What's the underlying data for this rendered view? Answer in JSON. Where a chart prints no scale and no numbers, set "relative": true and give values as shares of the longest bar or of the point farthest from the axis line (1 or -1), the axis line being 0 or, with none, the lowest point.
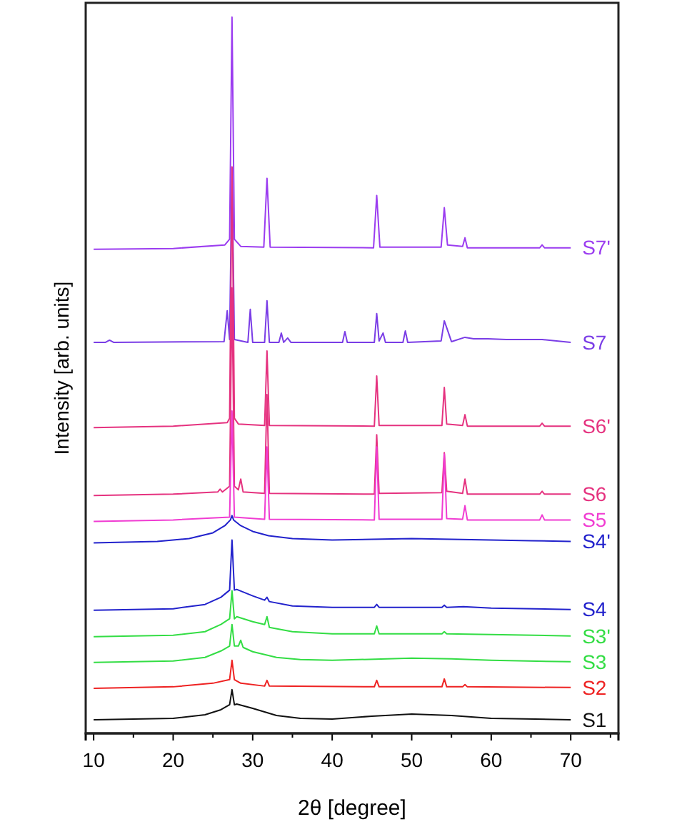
{
  "chart_data": {
    "type": "line",
    "relative": true,
    "xlabel": "2θ [degree]",
    "ylabel": "Intensity [arb. units]",
    "xlim": [
      9,
      76
    ],
    "xticks": [
      10,
      {
        "value": 15,
        "label": null
      },
      20,
      {
        "value": 25,
        "label": null
      },
      30,
      {
        "value": 35,
        "label": null
      },
      40,
      {
        "value": 45,
        "label": null
      },
      50,
      {
        "value": 55,
        "label": null
      },
      60,
      {
        "value": 65,
        "label": null
      },
      70,
      {
        "value": 75,
        "label": null
      }
    ],
    "series": [
      {
        "name": "S7'",
        "color": "#9b3cf0",
        "x": [
          10,
          20,
          26.5,
          27.1,
          27.4,
          27.7,
          28.5,
          31.4,
          31.8,
          32.2,
          45.2,
          45.6,
          46.0,
          53.7,
          54.1,
          54.5,
          56.4,
          56.7,
          57.0,
          66.1,
          66.4,
          66.7,
          70
        ],
        "values": [
          0.676,
          0.677,
          0.682,
          0.69,
          1.0,
          0.69,
          0.68,
          0.679,
          0.775,
          0.679,
          0.678,
          0.751,
          0.679,
          0.679,
          0.734,
          0.682,
          0.68,
          0.692,
          0.678,
          0.678,
          0.682,
          0.678,
          0.678
        ]
      },
      {
        "name": "S7",
        "color": "#7a3de6",
        "x": [
          10,
          11.5,
          12,
          12.5,
          26.4,
          26.8,
          27.1,
          27.4,
          27.7,
          29.4,
          29.7,
          30.0,
          31.5,
          31.8,
          32.1,
          33.3,
          33.6,
          33.9,
          34.4,
          34.8,
          41.3,
          41.6,
          41.9,
          45.3,
          45.6,
          45.9,
          46.4,
          46.7,
          48.9,
          49.2,
          49.5,
          53.7,
          54.1,
          54.6,
          55.0,
          56.7,
          57.8,
          59.6,
          61.9,
          66.4,
          70
        ],
        "values": [
          0.546,
          0.546,
          0.549,
          0.546,
          0.547,
          0.59,
          0.55,
          0.79,
          0.55,
          0.546,
          0.592,
          0.546,
          0.546,
          0.604,
          0.546,
          0.546,
          0.559,
          0.546,
          0.552,
          0.546,
          0.546,
          0.561,
          0.546,
          0.546,
          0.586,
          0.548,
          0.559,
          0.546,
          0.546,
          0.562,
          0.546,
          0.548,
          0.576,
          0.56,
          0.547,
          0.553,
          0.551,
          0.551,
          0.55,
          0.55,
          0.546
        ]
      },
      {
        "name": "S6'",
        "color": "#e5327f",
        "x": [
          10,
          20,
          26.8,
          27.1,
          27.4,
          27.7,
          28.2,
          31.5,
          31.8,
          32.1,
          45.3,
          45.6,
          45.9,
          53.8,
          54.1,
          54.4,
          56.4,
          56.7,
          57.0,
          66.1,
          66.4,
          66.7,
          70
        ],
        "values": [
          0.427,
          0.429,
          0.434,
          0.44,
          0.791,
          0.44,
          0.432,
          0.43,
          0.534,
          0.43,
          0.429,
          0.499,
          0.43,
          0.43,
          0.483,
          0.432,
          0.43,
          0.445,
          0.429,
          0.429,
          0.433,
          0.429,
          0.429
        ]
      },
      {
        "name": "S6",
        "color": "#e5327f",
        "x": [
          10,
          20,
          25.6,
          25.9,
          26.2,
          27.1,
          27.4,
          27.7,
          28.2,
          28.5,
          28.8,
          31.5,
          31.8,
          32.1,
          45.3,
          45.6,
          45.9,
          53.8,
          54.1,
          54.4,
          56.4,
          56.7,
          57.0,
          66.1,
          66.4,
          66.7,
          70
        ],
        "values": [
          0.332,
          0.334,
          0.337,
          0.341,
          0.337,
          0.345,
          0.622,
          0.345,
          0.34,
          0.355,
          0.337,
          0.335,
          0.473,
          0.335,
          0.334,
          0.417,
          0.335,
          0.336,
          0.392,
          0.338,
          0.335,
          0.355,
          0.334,
          0.334,
          0.338,
          0.334,
          0.334
        ]
      },
      {
        "name": "S5",
        "color": "#f03cd2",
        "x": [
          10,
          20,
          27.1,
          27.4,
          27.7,
          31.5,
          31.8,
          32.1,
          45.3,
          45.6,
          45.9,
          53.8,
          54.1,
          54.4,
          56.4,
          56.7,
          57.0,
          66.1,
          66.4,
          66.7,
          70
        ],
        "values": [
          0.296,
          0.298,
          0.302,
          0.45,
          0.302,
          0.299,
          0.4,
          0.299,
          0.298,
          0.4,
          0.299,
          0.299,
          0.39,
          0.3,
          0.299,
          0.318,
          0.298,
          0.298,
          0.305,
          0.298,
          0.298
        ]
      },
      {
        "name": "S4'",
        "color": "#2222cc",
        "x": [
          10,
          18,
          22,
          25,
          26.5,
          27.2,
          27.4,
          27.6,
          28.5,
          30,
          32,
          35,
          40,
          45,
          50,
          55,
          60,
          65,
          70
        ],
        "values": [
          0.266,
          0.268,
          0.272,
          0.28,
          0.29,
          0.298,
          0.304,
          0.298,
          0.29,
          0.282,
          0.276,
          0.272,
          0.27,
          0.271,
          0.272,
          0.271,
          0.27,
          0.269,
          0.268
        ]
      },
      {
        "name": "S4",
        "color": "#2222cc",
        "x": [
          10,
          20,
          24,
          26,
          27.1,
          27.4,
          27.7,
          28,
          30,
          31.5,
          31.8,
          32.1,
          35,
          40,
          45.3,
          45.6,
          45.9,
          50,
          53.8,
          54.1,
          54.4,
          56.5,
          60,
          70
        ],
        "values": [
          0.172,
          0.174,
          0.18,
          0.19,
          0.2,
          0.27,
          0.2,
          0.201,
          0.192,
          0.186,
          0.19,
          0.184,
          0.178,
          0.176,
          0.176,
          0.18,
          0.176,
          0.176,
          0.176,
          0.179,
          0.176,
          0.177,
          0.175,
          0.173
        ]
      },
      {
        "name": "S3'",
        "color": "#33dd44",
        "x": [
          10,
          20,
          24,
          26,
          27.1,
          27.4,
          27.7,
          28,
          30,
          31.5,
          31.8,
          32.1,
          35,
          40,
          45.3,
          45.6,
          45.9,
          50,
          53.8,
          54.1,
          54.4,
          60,
          70
        ],
        "values": [
          0.135,
          0.137,
          0.142,
          0.152,
          0.16,
          0.199,
          0.16,
          0.163,
          0.156,
          0.152,
          0.163,
          0.148,
          0.142,
          0.139,
          0.139,
          0.15,
          0.139,
          0.139,
          0.139,
          0.142,
          0.139,
          0.138,
          0.136
        ]
      },
      {
        "name": "S3",
        "color": "#33dd44",
        "x": [
          10,
          20,
          24,
          26,
          27.1,
          27.4,
          27.7,
          28.2,
          28.5,
          28.8,
          30,
          33,
          36,
          40,
          50,
          55,
          60,
          70
        ],
        "values": [
          0.099,
          0.101,
          0.106,
          0.115,
          0.122,
          0.152,
          0.122,
          0.122,
          0.13,
          0.12,
          0.114,
          0.106,
          0.103,
          0.102,
          0.105,
          0.104,
          0.102,
          0.1
        ]
      },
      {
        "name": "S2",
        "color": "#ee2222",
        "x": [
          10,
          20,
          25,
          27.1,
          27.4,
          27.7,
          28.5,
          31.5,
          31.8,
          32.1,
          45.3,
          45.6,
          45.9,
          53.8,
          54.1,
          54.4,
          56.4,
          56.7,
          57.0,
          70
        ],
        "values": [
          0.063,
          0.065,
          0.07,
          0.075,
          0.102,
          0.075,
          0.07,
          0.066,
          0.074,
          0.066,
          0.065,
          0.074,
          0.065,
          0.065,
          0.076,
          0.065,
          0.065,
          0.068,
          0.065,
          0.064
        ]
      },
      {
        "name": "S1",
        "color": "#111111",
        "x": [
          10,
          20,
          24,
          26,
          27.1,
          27.4,
          27.7,
          28,
          30,
          33,
          36,
          40,
          45,
          50,
          55,
          60,
          70
        ],
        "values": [
          0.019,
          0.021,
          0.026,
          0.033,
          0.04,
          0.061,
          0.04,
          0.041,
          0.035,
          0.025,
          0.021,
          0.02,
          0.024,
          0.027,
          0.025,
          0.021,
          0.019
        ]
      }
    ]
  }
}
